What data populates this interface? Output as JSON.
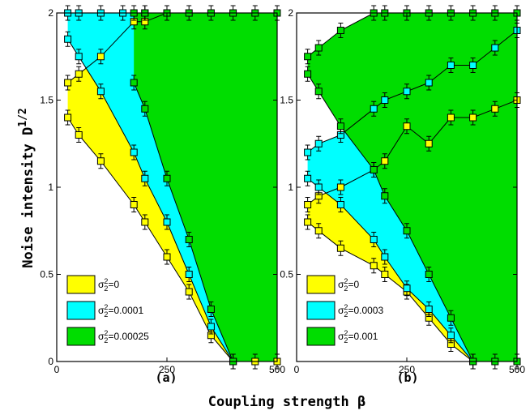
{
  "xlabel": "Coupling strength β",
  "ylabel": "Noise intensity D",
  "ylabel_sup": "1/2",
  "colors": {
    "yellow": "#ffff00",
    "cyan": "#00ffff",
    "green": "#00dd00"
  },
  "chart_data": [
    {
      "type": "area",
      "panel_label": "(a)",
      "xlim": [
        0,
        500
      ],
      "ylim": [
        0,
        2
      ],
      "xticks": [
        0,
        250,
        500
      ],
      "yticks": [
        0,
        0.5,
        1,
        1.5,
        2
      ],
      "xtick_labels": [
        "0",
        "250",
        "500"
      ],
      "ytick_labels": [
        "0",
        "0.5",
        "1",
        "1.5",
        "2"
      ],
      "legend": [
        {
          "label_base": "σ",
          "label_sup": "2",
          "label_sub": "2",
          "label_rest": "=0",
          "color": "#ffff00"
        },
        {
          "label_base": "σ",
          "label_sup": "2",
          "label_sub": "2",
          "label_rest": "=0.0001",
          "color": "#00ffff"
        },
        {
          "label_base": "σ",
          "label_sup": "2",
          "label_sub": "2",
          "label_rest": "=0.00025",
          "color": "#00dd00"
        }
      ],
      "series": [
        {
          "color": "#ffff00",
          "lower": [
            [
              25,
              1.4
            ],
            [
              50,
              1.3
            ],
            [
              100,
              1.15
            ],
            [
              175,
              0.9
            ],
            [
              200,
              0.8
            ],
            [
              250,
              0.6
            ],
            [
              300,
              0.4
            ],
            [
              350,
              0.15
            ],
            [
              400,
              0
            ]
          ],
          "upper": [
            [
              25,
              1.6
            ],
            [
              50,
              1.65
            ],
            [
              100,
              1.75
            ],
            [
              175,
              1.95
            ],
            [
              200,
              1.95
            ],
            [
              250,
              2
            ]
          ],
          "extra": [
            [
              400,
              0
            ],
            [
              450,
              0
            ],
            [
              500,
              0
            ]
          ]
        },
        {
          "color": "#00ffff",
          "lower": [
            [
              25,
              1.85
            ],
            [
              50,
              1.75
            ],
            [
              100,
              1.55
            ],
            [
              175,
              1.2
            ],
            [
              200,
              1.05
            ],
            [
              250,
              0.8
            ],
            [
              300,
              0.5
            ],
            [
              350,
              0.2
            ],
            [
              400,
              0
            ]
          ],
          "upper": [
            [
              25,
              2
            ],
            [
              50,
              2
            ],
            [
              100,
              2
            ],
            [
              150,
              2
            ],
            [
              200,
              2
            ]
          ],
          "extra": []
        },
        {
          "color": "#00dd00",
          "lower": [
            [
              175,
              1.6
            ],
            [
              200,
              1.45
            ],
            [
              250,
              1.05
            ],
            [
              300,
              0.7
            ],
            [
              350,
              0.3
            ],
            [
              400,
              0
            ]
          ],
          "upper": [
            [
              175,
              2
            ],
            [
              200,
              2
            ],
            [
              250,
              2
            ],
            [
              300,
              2
            ],
            [
              350,
              2
            ],
            [
              400,
              2
            ],
            [
              450,
              2
            ],
            [
              500,
              2
            ]
          ],
          "extra": []
        }
      ]
    },
    {
      "type": "area",
      "panel_label": "(b)",
      "xlim": [
        0,
        500
      ],
      "ylim": [
        0,
        2
      ],
      "xticks": [
        0,
        250,
        500
      ],
      "yticks": [
        0,
        0.5,
        1,
        1.5,
        2
      ],
      "xtick_labels": [
        "0",
        "250",
        "500"
      ],
      "ytick_labels": [
        "",
        "0.5",
        "1",
        "1.5",
        "2"
      ],
      "legend": [
        {
          "label_base": "σ",
          "label_sup": "2",
          "label_sub": "2",
          "label_rest": "=0",
          "color": "#ffff00"
        },
        {
          "label_base": "σ",
          "label_sup": "2",
          "label_sub": "2",
          "label_rest": "=0.0003",
          "color": "#00ffff"
        },
        {
          "label_base": "σ",
          "label_sup": "2",
          "label_sub": "2",
          "label_rest": "=0.001",
          "color": "#00dd00"
        }
      ],
      "series": [
        {
          "color": "#ffff00",
          "lower": [
            [
              25,
              0.8
            ],
            [
              50,
              0.75
            ],
            [
              100,
              0.65
            ],
            [
              175,
              0.55
            ],
            [
              200,
              0.5
            ],
            [
              250,
              0.4
            ],
            [
              300,
              0.25
            ],
            [
              350,
              0.1
            ],
            [
              400,
              0
            ]
          ],
          "upper": [
            [
              25,
              0.9
            ],
            [
              50,
              0.95
            ],
            [
              100,
              1.0
            ],
            [
              175,
              1.1
            ],
            [
              200,
              1.15
            ],
            [
              250,
              1.35
            ],
            [
              300,
              1.25
            ],
            [
              350,
              1.4
            ],
            [
              400,
              1.4
            ],
            [
              450,
              1.45
            ],
            [
              500,
              1.5
            ]
          ],
          "extra": []
        },
        {
          "color": "#00ffff",
          "lower": [
            [
              25,
              1.05
            ],
            [
              50,
              1.0
            ],
            [
              100,
              0.9
            ],
            [
              175,
              0.7
            ],
            [
              200,
              0.6
            ],
            [
              250,
              0.42
            ],
            [
              300,
              0.3
            ],
            [
              350,
              0.15
            ],
            [
              400,
              0
            ]
          ],
          "upper": [
            [
              25,
              1.2
            ],
            [
              50,
              1.25
            ],
            [
              100,
              1.3
            ],
            [
              175,
              1.45
            ],
            [
              200,
              1.5
            ],
            [
              250,
              1.55
            ],
            [
              300,
              1.6
            ],
            [
              350,
              1.7
            ],
            [
              400,
              1.7
            ],
            [
              450,
              1.8
            ],
            [
              500,
              1.9
            ]
          ],
          "extra": []
        },
        {
          "color": "#00dd00",
          "lower": [
            [
              25,
              1.65
            ],
            [
              50,
              1.55
            ],
            [
              100,
              1.35
            ],
            [
              175,
              1.1
            ],
            [
              200,
              0.95
            ],
            [
              250,
              0.75
            ],
            [
              300,
              0.5
            ],
            [
              350,
              0.25
            ],
            [
              400,
              0
            ]
          ],
          "upper": [
            [
              25,
              1.75
            ],
            [
              50,
              1.8
            ],
            [
              100,
              1.9
            ],
            [
              175,
              2
            ],
            [
              200,
              2
            ],
            [
              250,
              2
            ],
            [
              300,
              2
            ],
            [
              350,
              2
            ],
            [
              400,
              2
            ],
            [
              450,
              2
            ],
            [
              500,
              2
            ]
          ],
          "extra": [
            [
              400,
              0
            ],
            [
              450,
              0
            ],
            [
              500,
              0
            ]
          ]
        }
      ]
    }
  ]
}
